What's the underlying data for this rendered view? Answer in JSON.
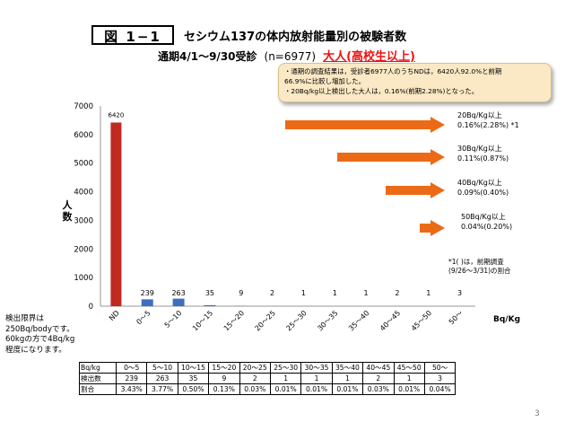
{
  "header": {
    "figure_label": "図 1−1",
    "title_line1": "セシウム137の体内放射能量別の被験者数",
    "title_line2": "通期4/1〜9/30受診",
    "n_label": "(n=6977)",
    "group_label": "大人(高校生以上)"
  },
  "note_box": {
    "line1": "・通期の調査結果は，受診者6977人のうちNDは，6420人92.0%と前期",
    "line2": "66.9%に比較し増加した。",
    "line3": "・20Bq/kg以上検出した大人は，0.16%(前期2.28%)となった。"
  },
  "left_note": {
    "line1": "検出限界は",
    "line2": "250Bq/bodyです。",
    "line3": "60kgの方で4Bq/kg",
    "line4": "程度になります。"
  },
  "arrows": [
    {
      "label1": "20Bq/Kg以上",
      "label2": "0.16%(2.28%) *1"
    },
    {
      "label1": "30Bq/Kg以上",
      "label2": "0.11%(0.87%)"
    },
    {
      "label1": "40Bq/Kg以上",
      "label2": "0.09%(0.40%)"
    },
    {
      "label1": "50Bq/Kg以上",
      "label2": "0.04%(0.20%)"
    }
  ],
  "footnote": {
    "line1": "*1( )は，前期調査",
    "line2": "(9/26〜3/31)の割合"
  },
  "colors": {
    "nd_bar": "#c0291f",
    "bar": "#3c6fc0",
    "arrow": "#ec6a16",
    "title_red": "#e11111"
  },
  "chart_data": {
    "type": "bar",
    "categories": [
      "ND",
      "0〜5",
      "5〜10",
      "10〜15",
      "15〜20",
      "20〜25",
      "25〜30",
      "30〜35",
      "35〜40",
      "40〜45",
      "45〜50",
      "50〜"
    ],
    "values": [
      6420,
      239,
      263,
      35,
      9,
      2,
      1,
      1,
      1,
      2,
      1,
      3
    ],
    "data_labels": [
      "6420",
      "239",
      "263",
      "35",
      "9",
      "2",
      "1",
      "1",
      "1",
      "2",
      "1",
      "3"
    ],
    "ylabel": "人数",
    "xlabel": "Bq/Kg",
    "ylim": [
      0,
      7000
    ],
    "yticks": [
      0,
      1000,
      2000,
      3000,
      4000,
      5000,
      6000,
      7000
    ],
    "grid": false
  },
  "table": {
    "header_label": "Bq/kg",
    "columns": [
      "0〜5",
      "5〜10",
      "10〜15",
      "15〜20",
      "20〜25",
      "25〜30",
      "30〜35",
      "35〜40",
      "40〜45",
      "45〜50",
      "50〜"
    ],
    "rows": [
      {
        "label": "検出数",
        "cells": [
          "239",
          "263",
          "35",
          "9",
          "2",
          "1",
          "1",
          "1",
          "2",
          "1",
          "3"
        ]
      },
      {
        "label": "割合",
        "cells": [
          "3.43%",
          "3.77%",
          "0.50%",
          "0.13%",
          "0.03%",
          "0.01%",
          "0.01%",
          "0.01%",
          "0.03%",
          "0.01%",
          "0.04%"
        ]
      }
    ]
  },
  "page_number": "3"
}
